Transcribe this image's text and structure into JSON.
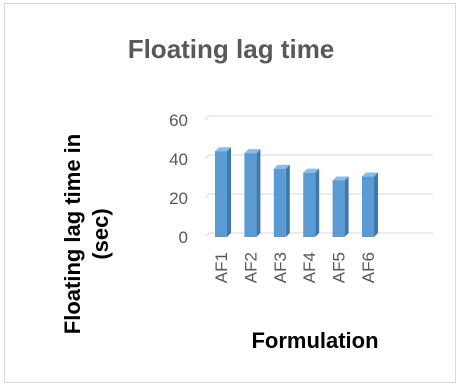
{
  "chart_data": {
    "type": "bar",
    "title": "Floating lag time",
    "xlabel": "Formulation",
    "ylabel": "Floating lag time in (sec)",
    "ylabel_lines": [
      "Floating lag time in",
      "(sec)"
    ],
    "categories": [
      "AF1",
      "AF2",
      "AF3",
      "AF4",
      "AF5",
      "AF6"
    ],
    "values": [
      44,
      43,
      35,
      33,
      29,
      31
    ],
    "yticks": [
      0,
      20,
      40,
      60
    ],
    "ylim": [
      0,
      60
    ],
    "grid": true,
    "bar_color": "#5b9bd5",
    "bar_side_color": "#3f78ad",
    "bar_top_color": "#8fbbe4"
  }
}
